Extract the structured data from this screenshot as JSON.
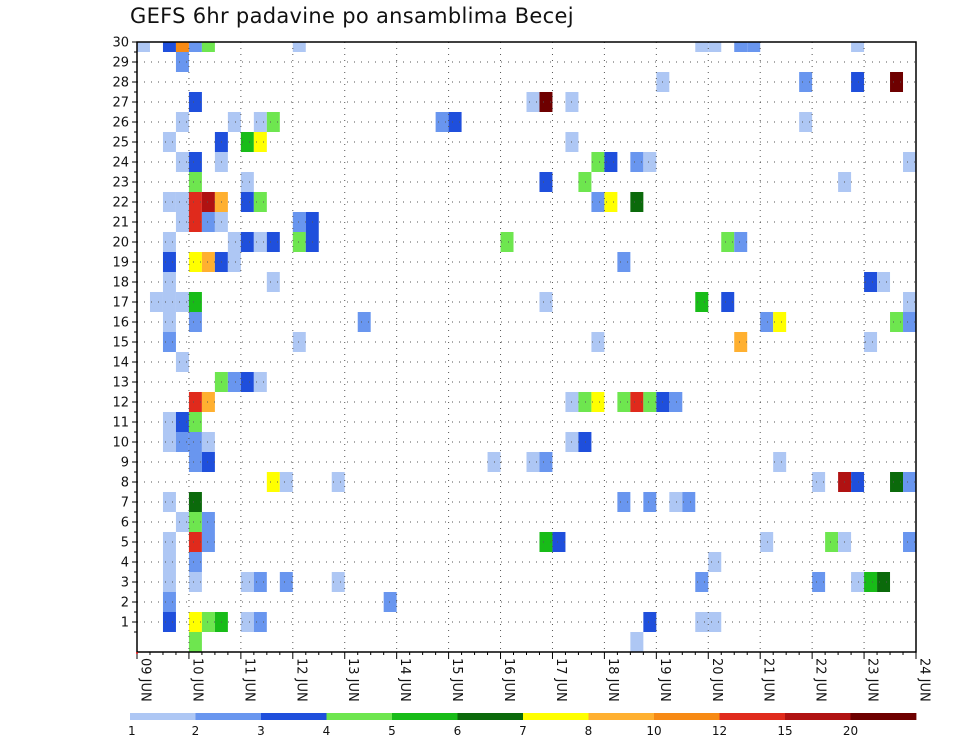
{
  "chart_data": {
    "type": "heatmap",
    "title": "GEFS 6hr padavine po ansamblima Becej",
    "x_tick_labels": [
      "09 JUN",
      "10 JUN",
      "11 JUN",
      "12 JUN",
      "13 JUN",
      "14 JUN",
      "15 JUN",
      "16 JUN",
      "17 JUN",
      "18 JUN",
      "19 JUN",
      "20 JUN",
      "21 JUN",
      "22 JUN",
      "23 JUN",
      "24 JUN"
    ],
    "y_tick_labels": [
      1,
      2,
      3,
      4,
      5,
      6,
      7,
      8,
      9,
      10,
      11,
      12,
      13,
      14,
      15,
      16,
      17,
      18,
      19,
      20,
      21,
      22,
      23,
      24,
      25,
      26,
      27,
      28,
      29,
      30
    ],
    "x_steps_per_day": 4,
    "legend": {
      "labels": [
        "1",
        "2",
        "3",
        "4",
        "5",
        "6",
        "7",
        "8",
        "10",
        "12",
        "15",
        "20"
      ],
      "colors": [
        "#aec7f4",
        "#6996ef",
        "#1f4fdc",
        "#6ee64f",
        "#18bc18",
        "#0b6a0b",
        "#ffff00",
        "#ffb030",
        "#f78a14",
        "#e02a1c",
        "#b01212",
        "#6e0000"
      ]
    },
    "grid": "dotted",
    "cells": [
      {
        "member": 30,
        "step": 1,
        "cls": 1
      },
      {
        "member": 30,
        "step": 3,
        "cls": 3
      },
      {
        "member": 30,
        "step": 4,
        "cls": 9
      },
      {
        "member": 30,
        "step": 5,
        "cls": 2
      },
      {
        "member": 30,
        "step": 6,
        "cls": 4
      },
      {
        "member": 30,
        "step": 13,
        "cls": 1
      },
      {
        "member": 30,
        "step": 44,
        "cls": 1
      },
      {
        "member": 30,
        "step": 45,
        "cls": 1
      },
      {
        "member": 30,
        "step": 47,
        "cls": 2
      },
      {
        "member": 30,
        "step": 48,
        "cls": 2
      },
      {
        "member": 30,
        "step": 56,
        "cls": 1
      },
      {
        "member": 29,
        "step": 4,
        "cls": 2
      },
      {
        "member": 28,
        "step": 41,
        "cls": 1
      },
      {
        "member": 28,
        "step": 52,
        "cls": 2
      },
      {
        "member": 28,
        "step": 56,
        "cls": 3
      },
      {
        "member": 28,
        "step": 59,
        "cls": 12
      },
      {
        "member": 27,
        "step": 5,
        "cls": 3
      },
      {
        "member": 27,
        "step": 31,
        "cls": 1
      },
      {
        "member": 27,
        "step": 32,
        "cls": 12
      },
      {
        "member": 27,
        "step": 34,
        "cls": 1
      },
      {
        "member": 26,
        "step": 4,
        "cls": 1
      },
      {
        "member": 26,
        "step": 8,
        "cls": 1
      },
      {
        "member": 26,
        "step": 10,
        "cls": 1
      },
      {
        "member": 26,
        "step": 11,
        "cls": 4
      },
      {
        "member": 26,
        "step": 24,
        "cls": 2
      },
      {
        "member": 26,
        "step": 25,
        "cls": 3
      },
      {
        "member": 26,
        "step": 52,
        "cls": 1
      },
      {
        "member": 25,
        "step": 3,
        "cls": 1
      },
      {
        "member": 25,
        "step": 7,
        "cls": 3
      },
      {
        "member": 25,
        "step": 9,
        "cls": 5
      },
      {
        "member": 25,
        "step": 10,
        "cls": 7
      },
      {
        "member": 25,
        "step": 34,
        "cls": 1
      },
      {
        "member": 24,
        "step": 4,
        "cls": 1
      },
      {
        "member": 24,
        "step": 5,
        "cls": 3
      },
      {
        "member": 24,
        "step": 7,
        "cls": 1
      },
      {
        "member": 24,
        "step": 36,
        "cls": 4
      },
      {
        "member": 24,
        "step": 37,
        "cls": 3
      },
      {
        "member": 24,
        "step": 39,
        "cls": 2
      },
      {
        "member": 24,
        "step": 40,
        "cls": 1
      },
      {
        "member": 24,
        "step": 60,
        "cls": 1
      },
      {
        "member": 23,
        "step": 5,
        "cls": 4
      },
      {
        "member": 23,
        "step": 9,
        "cls": 1
      },
      {
        "member": 23,
        "step": 32,
        "cls": 3
      },
      {
        "member": 23,
        "step": 35,
        "cls": 4
      },
      {
        "member": 23,
        "step": 55,
        "cls": 1
      },
      {
        "member": 22,
        "step": 3,
        "cls": 1
      },
      {
        "member": 22,
        "step": 4,
        "cls": 1
      },
      {
        "member": 22,
        "step": 5,
        "cls": 10
      },
      {
        "member": 22,
        "step": 6,
        "cls": 11
      },
      {
        "member": 22,
        "step": 7,
        "cls": 8
      },
      {
        "member": 22,
        "step": 9,
        "cls": 3
      },
      {
        "member": 22,
        "step": 10,
        "cls": 4
      },
      {
        "member": 22,
        "step": 36,
        "cls": 2
      },
      {
        "member": 22,
        "step": 37,
        "cls": 7
      },
      {
        "member": 22,
        "step": 39,
        "cls": 6
      },
      {
        "member": 21,
        "step": 4,
        "cls": 1
      },
      {
        "member": 21,
        "step": 5,
        "cls": 10
      },
      {
        "member": 21,
        "step": 6,
        "cls": 2
      },
      {
        "member": 21,
        "step": 7,
        "cls": 1
      },
      {
        "member": 21,
        "step": 13,
        "cls": 2
      },
      {
        "member": 21,
        "step": 14,
        "cls": 3
      },
      {
        "member": 20,
        "step": 3,
        "cls": 1
      },
      {
        "member": 20,
        "step": 8,
        "cls": 1
      },
      {
        "member": 20,
        "step": 9,
        "cls": 3
      },
      {
        "member": 20,
        "step": 10,
        "cls": 1
      },
      {
        "member": 20,
        "step": 11,
        "cls": 3
      },
      {
        "member": 20,
        "step": 13,
        "cls": 4
      },
      {
        "member": 20,
        "step": 14,
        "cls": 3
      },
      {
        "member": 20,
        "step": 29,
        "cls": 4
      },
      {
        "member": 20,
        "step": 46,
        "cls": 4
      },
      {
        "member": 20,
        "step": 47,
        "cls": 2
      },
      {
        "member": 19,
        "step": 3,
        "cls": 3
      },
      {
        "member": 19,
        "step": 5,
        "cls": 7
      },
      {
        "member": 19,
        "step": 6,
        "cls": 8
      },
      {
        "member": 19,
        "step": 7,
        "cls": 3
      },
      {
        "member": 19,
        "step": 8,
        "cls": 1
      },
      {
        "member": 19,
        "step": 38,
        "cls": 2
      },
      {
        "member": 18,
        "step": 3,
        "cls": 1
      },
      {
        "member": 18,
        "step": 11,
        "cls": 1
      },
      {
        "member": 18,
        "step": 57,
        "cls": 3
      },
      {
        "member": 18,
        "step": 58,
        "cls": 1
      },
      {
        "member": 17,
        "step": 2,
        "cls": 1
      },
      {
        "member": 17,
        "step": 3,
        "cls": 1
      },
      {
        "member": 17,
        "step": 4,
        "cls": 1
      },
      {
        "member": 17,
        "step": 5,
        "cls": 5
      },
      {
        "member": 17,
        "step": 32,
        "cls": 1
      },
      {
        "member": 17,
        "step": 44,
        "cls": 5
      },
      {
        "member": 17,
        "step": 46,
        "cls": 3
      },
      {
        "member": 17,
        "step": 60,
        "cls": 1
      },
      {
        "member": 16,
        "step": 3,
        "cls": 1
      },
      {
        "member": 16,
        "step": 5,
        "cls": 2
      },
      {
        "member": 16,
        "step": 18,
        "cls": 2
      },
      {
        "member": 16,
        "step": 49,
        "cls": 2
      },
      {
        "member": 16,
        "step": 50,
        "cls": 7
      },
      {
        "member": 16,
        "step": 59,
        "cls": 4
      },
      {
        "member": 16,
        "step": 60,
        "cls": 2
      },
      {
        "member": 15,
        "step": 3,
        "cls": 2
      },
      {
        "member": 15,
        "step": 13,
        "cls": 1
      },
      {
        "member": 15,
        "step": 36,
        "cls": 1
      },
      {
        "member": 15,
        "step": 47,
        "cls": 8
      },
      {
        "member": 15,
        "step": 57,
        "cls": 1
      },
      {
        "member": 14,
        "step": 4,
        "cls": 1
      },
      {
        "member": 13,
        "step": 7,
        "cls": 4
      },
      {
        "member": 13,
        "step": 8,
        "cls": 2
      },
      {
        "member": 13,
        "step": 9,
        "cls": 3
      },
      {
        "member": 13,
        "step": 10,
        "cls": 1
      },
      {
        "member": 12,
        "step": 5,
        "cls": 10
      },
      {
        "member": 12,
        "step": 6,
        "cls": 8
      },
      {
        "member": 12,
        "step": 34,
        "cls": 1
      },
      {
        "member": 12,
        "step": 35,
        "cls": 4
      },
      {
        "member": 12,
        "step": 36,
        "cls": 7
      },
      {
        "member": 12,
        "step": 38,
        "cls": 4
      },
      {
        "member": 12,
        "step": 39,
        "cls": 10
      },
      {
        "member": 12,
        "step": 40,
        "cls": 4
      },
      {
        "member": 12,
        "step": 41,
        "cls": 3
      },
      {
        "member": 12,
        "step": 42,
        "cls": 2
      },
      {
        "member": 11,
        "step": 3,
        "cls": 1
      },
      {
        "member": 11,
        "step": 4,
        "cls": 3
      },
      {
        "member": 11,
        "step": 5,
        "cls": 4
      },
      {
        "member": 10,
        "step": 3,
        "cls": 1
      },
      {
        "member": 10,
        "step": 4,
        "cls": 2
      },
      {
        "member": 10,
        "step": 5,
        "cls": 2
      },
      {
        "member": 10,
        "step": 6,
        "cls": 1
      },
      {
        "member": 10,
        "step": 34,
        "cls": 1
      },
      {
        "member": 10,
        "step": 35,
        "cls": 3
      },
      {
        "member": 9,
        "step": 5,
        "cls": 2
      },
      {
        "member": 9,
        "step": 6,
        "cls": 3
      },
      {
        "member": 9,
        "step": 28,
        "cls": 1
      },
      {
        "member": 9,
        "step": 31,
        "cls": 1
      },
      {
        "member": 9,
        "step": 32,
        "cls": 2
      },
      {
        "member": 9,
        "step": 50,
        "cls": 1
      },
      {
        "member": 8,
        "step": 11,
        "cls": 7
      },
      {
        "member": 8,
        "step": 12,
        "cls": 1
      },
      {
        "member": 8,
        "step": 16,
        "cls": 1
      },
      {
        "member": 8,
        "step": 53,
        "cls": 1
      },
      {
        "member": 8,
        "step": 55,
        "cls": 11
      },
      {
        "member": 8,
        "step": 56,
        "cls": 3
      },
      {
        "member": 8,
        "step": 59,
        "cls": 6
      },
      {
        "member": 8,
        "step": 60,
        "cls": 2
      },
      {
        "member": 7,
        "step": 3,
        "cls": 1
      },
      {
        "member": 7,
        "step": 5,
        "cls": 6
      },
      {
        "member": 7,
        "step": 38,
        "cls": 2
      },
      {
        "member": 7,
        "step": 40,
        "cls": 2
      },
      {
        "member": 7,
        "step": 42,
        "cls": 1
      },
      {
        "member": 7,
        "step": 43,
        "cls": 2
      },
      {
        "member": 6,
        "step": 4,
        "cls": 1
      },
      {
        "member": 6,
        "step": 5,
        "cls": 4
      },
      {
        "member": 6,
        "step": 6,
        "cls": 2
      },
      {
        "member": 5,
        "step": 3,
        "cls": 1
      },
      {
        "member": 5,
        "step": 5,
        "cls": 10
      },
      {
        "member": 5,
        "step": 6,
        "cls": 2
      },
      {
        "member": 5,
        "step": 32,
        "cls": 5
      },
      {
        "member": 5,
        "step": 33,
        "cls": 3
      },
      {
        "member": 5,
        "step": 49,
        "cls": 1
      },
      {
        "member": 5,
        "step": 54,
        "cls": 4
      },
      {
        "member": 5,
        "step": 55,
        "cls": 1
      },
      {
        "member": 5,
        "step": 60,
        "cls": 2
      },
      {
        "member": 4,
        "step": 3,
        "cls": 1
      },
      {
        "member": 4,
        "step": 5,
        "cls": 2
      },
      {
        "member": 4,
        "step": 45,
        "cls": 1
      },
      {
        "member": 3,
        "step": 3,
        "cls": 1
      },
      {
        "member": 3,
        "step": 5,
        "cls": 1
      },
      {
        "member": 3,
        "step": 9,
        "cls": 1
      },
      {
        "member": 3,
        "step": 10,
        "cls": 2
      },
      {
        "member": 3,
        "step": 12,
        "cls": 2
      },
      {
        "member": 3,
        "step": 16,
        "cls": 1
      },
      {
        "member": 3,
        "step": 44,
        "cls": 2
      },
      {
        "member": 3,
        "step": 53,
        "cls": 2
      },
      {
        "member": 3,
        "step": 56,
        "cls": 1
      },
      {
        "member": 3,
        "step": 57,
        "cls": 5
      },
      {
        "member": 3,
        "step": 58,
        "cls": 6
      },
      {
        "member": 2,
        "step": 3,
        "cls": 2
      },
      {
        "member": 2,
        "step": 20,
        "cls": 2
      },
      {
        "member": 1,
        "step": 3,
        "cls": 3
      },
      {
        "member": 1,
        "step": 5,
        "cls": 7
      },
      {
        "member": 1,
        "step": 6,
        "cls": 4
      },
      {
        "member": 1,
        "step": 7,
        "cls": 5
      },
      {
        "member": 1,
        "step": 9,
        "cls": 1
      },
      {
        "member": 1,
        "step": 10,
        "cls": 2
      },
      {
        "member": 1,
        "step": 40,
        "cls": 3
      },
      {
        "member": 1,
        "step": 44,
        "cls": 1
      },
      {
        "member": 1,
        "step": 45,
        "cls": 1
      },
      {
        "member": 0,
        "step": 5,
        "cls": 4
      },
      {
        "member": 0,
        "step": 39,
        "cls": 1
      }
    ]
  }
}
